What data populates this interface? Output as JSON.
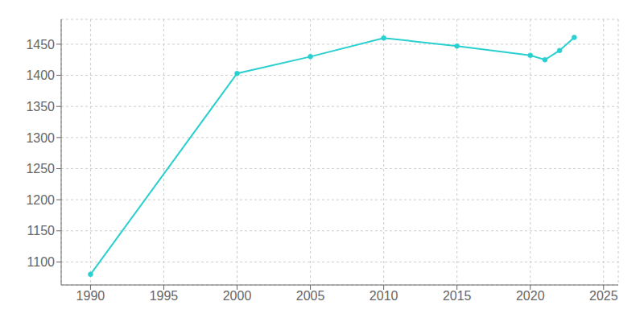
{
  "chart_data": {
    "type": "line",
    "x": [
      1990,
      2000,
      2005,
      2010,
      2015,
      2020,
      2021,
      2022,
      2023
    ],
    "values": [
      1080,
      1403,
      1430,
      1460,
      1447,
      1432,
      1425,
      1440,
      1461
    ],
    "color": "#2acfcf",
    "marker": "circle",
    "xlim": [
      1988,
      2026
    ],
    "ylim": [
      1063,
      1490
    ],
    "xticks": [
      1990,
      1995,
      2000,
      2005,
      2010,
      2015,
      2020,
      2025
    ],
    "yticks": [
      1100,
      1150,
      1200,
      1250,
      1300,
      1350,
      1400,
      1450
    ],
    "grid": true
  }
}
